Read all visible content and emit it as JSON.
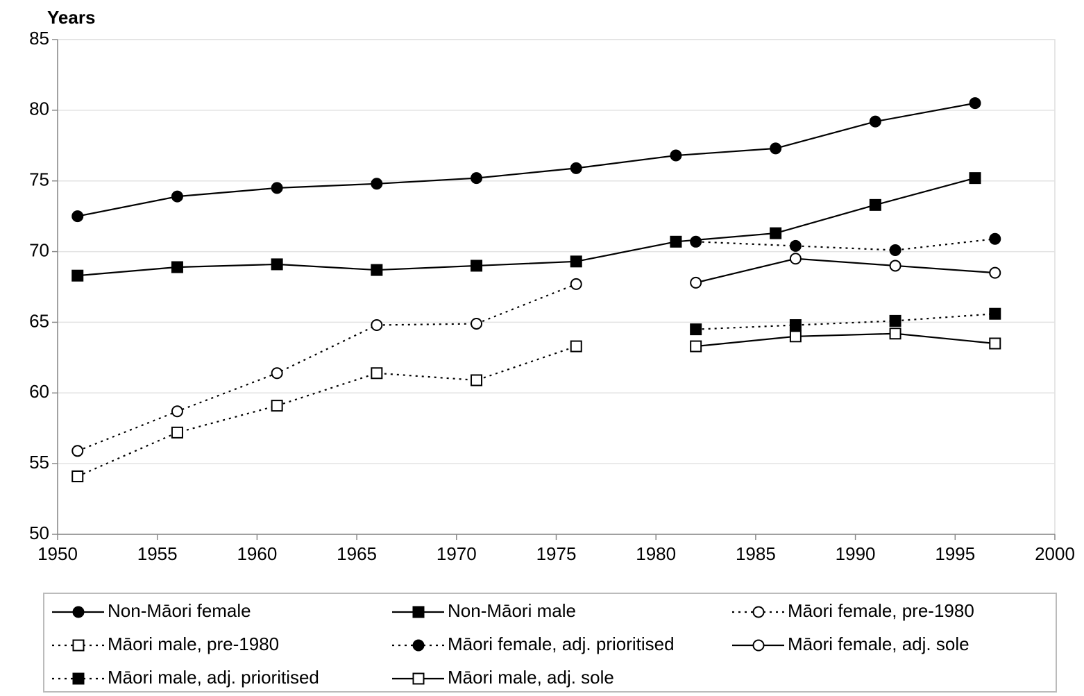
{
  "chart_data": {
    "type": "line",
    "y_label": "Years",
    "xlim": [
      1950,
      2000
    ],
    "xticks": [
      1950,
      1955,
      1960,
      1965,
      1970,
      1975,
      1980,
      1985,
      1990,
      1995,
      2000
    ],
    "ylim": [
      50,
      85
    ],
    "yticks": [
      50,
      55,
      60,
      65,
      70,
      75,
      80,
      85
    ],
    "grid": true,
    "series": [
      {
        "name": "Non-Māori female",
        "color": "#000000",
        "marker": "circle",
        "filled": true,
        "dashed": false,
        "x": [
          1951,
          1956,
          1961,
          1966,
          1971,
          1976,
          1981,
          1986,
          1991,
          1996
        ],
        "values": [
          72.5,
          73.9,
          74.5,
          74.8,
          75.2,
          75.9,
          76.8,
          77.3,
          79.2,
          80.5
        ]
      },
      {
        "name": "Non-Māori male",
        "color": "#000000",
        "marker": "square",
        "filled": true,
        "dashed": false,
        "x": [
          1951,
          1956,
          1961,
          1966,
          1971,
          1976,
          1981,
          1986,
          1991,
          1996
        ],
        "values": [
          68.3,
          68.9,
          69.1,
          68.7,
          69.0,
          69.3,
          70.7,
          71.3,
          73.3,
          75.2
        ]
      },
      {
        "name": "Māori female, pre-1980",
        "color": "#000000",
        "marker": "circle",
        "filled": false,
        "dashed": true,
        "x": [
          1951,
          1956,
          1961,
          1966,
          1971,
          1976
        ],
        "values": [
          55.9,
          58.7,
          61.4,
          64.8,
          64.9,
          67.7
        ]
      },
      {
        "name": "Māori male, pre-1980",
        "color": "#000000",
        "marker": "square",
        "filled": false,
        "dashed": true,
        "x": [
          1951,
          1956,
          1961,
          1966,
          1971,
          1976
        ],
        "values": [
          54.1,
          57.2,
          59.1,
          61.4,
          60.9,
          63.3
        ]
      },
      {
        "name": "Māori female, adj. prioritised",
        "color": "#000000",
        "marker": "circle",
        "filled": true,
        "dashed": true,
        "x": [
          1982,
          1987,
          1992,
          1997
        ],
        "values": [
          70.7,
          70.4,
          70.1,
          70.9
        ]
      },
      {
        "name": "Māori female, adj. sole",
        "color": "#000000",
        "marker": "circle",
        "filled": false,
        "dashed": false,
        "x": [
          1982,
          1987,
          1992,
          1997
        ],
        "values": [
          67.8,
          69.5,
          69.0,
          68.5
        ]
      },
      {
        "name": "Māori male, adj. prioritised",
        "color": "#000000",
        "marker": "square",
        "filled": true,
        "dashed": true,
        "x": [
          1982,
          1987,
          1992,
          1997
        ],
        "values": [
          64.5,
          64.8,
          65.1,
          65.6
        ]
      },
      {
        "name": "Māori male, adj. sole",
        "color": "#000000",
        "marker": "square",
        "filled": false,
        "dashed": false,
        "x": [
          1982,
          1987,
          1992,
          1997
        ],
        "values": [
          63.3,
          64.0,
          64.2,
          63.5
        ]
      }
    ]
  }
}
